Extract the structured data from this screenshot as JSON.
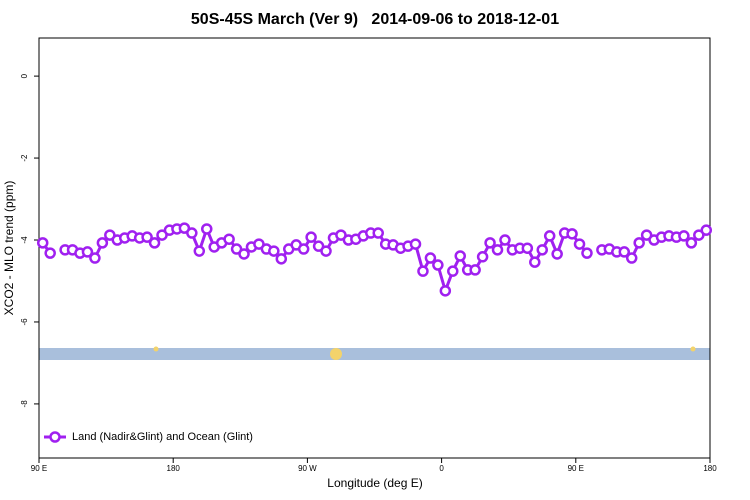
{
  "chart_data": {
    "type": "line",
    "title": "50S-45S March (Ver 9)   2014-09-06 to 2018-12-01",
    "x_label": "Longitude (deg E)",
    "y_label": "XCO2 - MLO trend (ppm)",
    "x": [
      92.5,
      97.5,
      102.5,
      107.5,
      112.5,
      117.5,
      122.5,
      127.5,
      132.5,
      137.5,
      142.5,
      147.5,
      152.5,
      157.5,
      162.5,
      167.5,
      172.5,
      177.5,
      182.5,
      187.5,
      192.5,
      197.5,
      202.5,
      207.5,
      212.5,
      217.5,
      222.5,
      227.5,
      232.5,
      237.5,
      242.5,
      247.5,
      252.5,
      257.5,
      262.5,
      267.5,
      272.5,
      277.5,
      282.5,
      287.5,
      292.5,
      297.5,
      302.5,
      307.5,
      312.5,
      317.5,
      322.5,
      327.5,
      332.5,
      337.5,
      342.5,
      347.5,
      352.5,
      357.5,
      362.5,
      367.5,
      372.5,
      377.5,
      382.5,
      387.5,
      392.5,
      397.5,
      402.5,
      407.5,
      412.5,
      417.5,
      422.5,
      427.5,
      432.5,
      437.5,
      442.5,
      447.5,
      452.5,
      457.5,
      462.5,
      467.5,
      472.5,
      477.5,
      482.5,
      487.5,
      492.5,
      497.5,
      502.5,
      507.5,
      512.5,
      517.5,
      522.5,
      527.5,
      532.5,
      537.5
    ],
    "series": [
      {
        "name": "Land (Nadir&Glint) and Ocean (Glint)",
        "color": "#a020f0",
        "values": [
          -4.07,
          -4.32,
          null,
          -4.24,
          -4.24,
          -4.32,
          -4.29,
          -4.44,
          -4.07,
          -3.88,
          -4.0,
          -3.95,
          -3.9,
          -3.95,
          -3.93,
          -4.07,
          -3.88,
          -3.76,
          -3.73,
          -3.71,
          -3.83,
          -4.27,
          -3.73,
          -4.17,
          -4.07,
          -3.98,
          -4.22,
          -4.34,
          -4.17,
          -4.1,
          -4.22,
          -4.27,
          -4.46,
          -4.22,
          -4.12,
          -4.22,
          -3.93,
          -4.15,
          -4.27,
          -3.95,
          -3.88,
          -4.0,
          -3.98,
          -3.9,
          -3.83,
          -3.83,
          -4.1,
          -4.12,
          -4.2,
          -4.15,
          -4.1,
          -4.76,
          -4.44,
          -4.61,
          -5.24,
          -4.76,
          -4.39,
          -4.73,
          -4.73,
          -4.41,
          -4.07,
          -4.24,
          -4.0,
          -4.24,
          -4.2,
          -4.2,
          -4.54,
          -4.24,
          -3.9,
          -4.34,
          -3.83,
          -3.85,
          -4.1,
          -4.32,
          null,
          -4.24,
          -4.22,
          -4.29,
          -4.29,
          -4.44,
          -4.07,
          -3.88,
          -4.0,
          -3.93,
          -3.9,
          -3.93,
          -3.9,
          -4.07,
          -3.88,
          -3.76
        ]
      }
    ],
    "xlim": [
      90,
      540
    ],
    "xticks": [
      {
        "value": 90,
        "label": "90 E"
      },
      180,
      {
        "value": 270,
        "label": "90 W"
      },
      {
        "value": 360,
        "label": "0"
      },
      {
        "value": 450,
        "label": "90 E"
      },
      {
        "value": 540,
        "label": "180"
      }
    ],
    "ylim": [
      -9.32,
      0.93
    ],
    "yticks": [
      0,
      -2,
      -4,
      -6,
      -8
    ],
    "grid": false,
    "legend": "bottom-left"
  }
}
